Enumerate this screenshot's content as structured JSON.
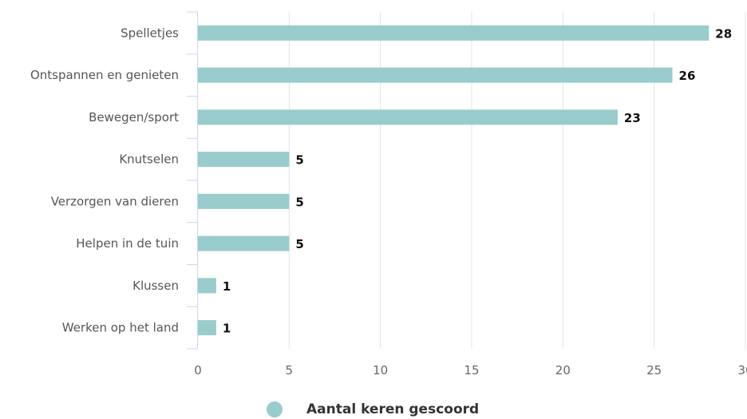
{
  "chart_data": {
    "type": "bar",
    "orientation": "horizontal",
    "categories": [
      "Spelletjes",
      "Ontspannen en genieten",
      "Bewegen/sport",
      "Knutselen",
      "Verzorgen van dieren",
      "Helpen in de tuin",
      "Klussen",
      "Werken op het land"
    ],
    "series": [
      {
        "name": "Aantal keren gescoord",
        "values": [
          28,
          26,
          23,
          5,
          5,
          5,
          1,
          1
        ]
      }
    ],
    "xlim": [
      0,
      30
    ],
    "xticks": [
      "0",
      "5",
      "10",
      "15",
      "20",
      "25",
      "30"
    ],
    "grid": true,
    "legend_position": "bottom",
    "colors": {
      "bar": "#99cccc",
      "grid": "#e0e3ea",
      "axis": "#ccd6eb"
    }
  }
}
